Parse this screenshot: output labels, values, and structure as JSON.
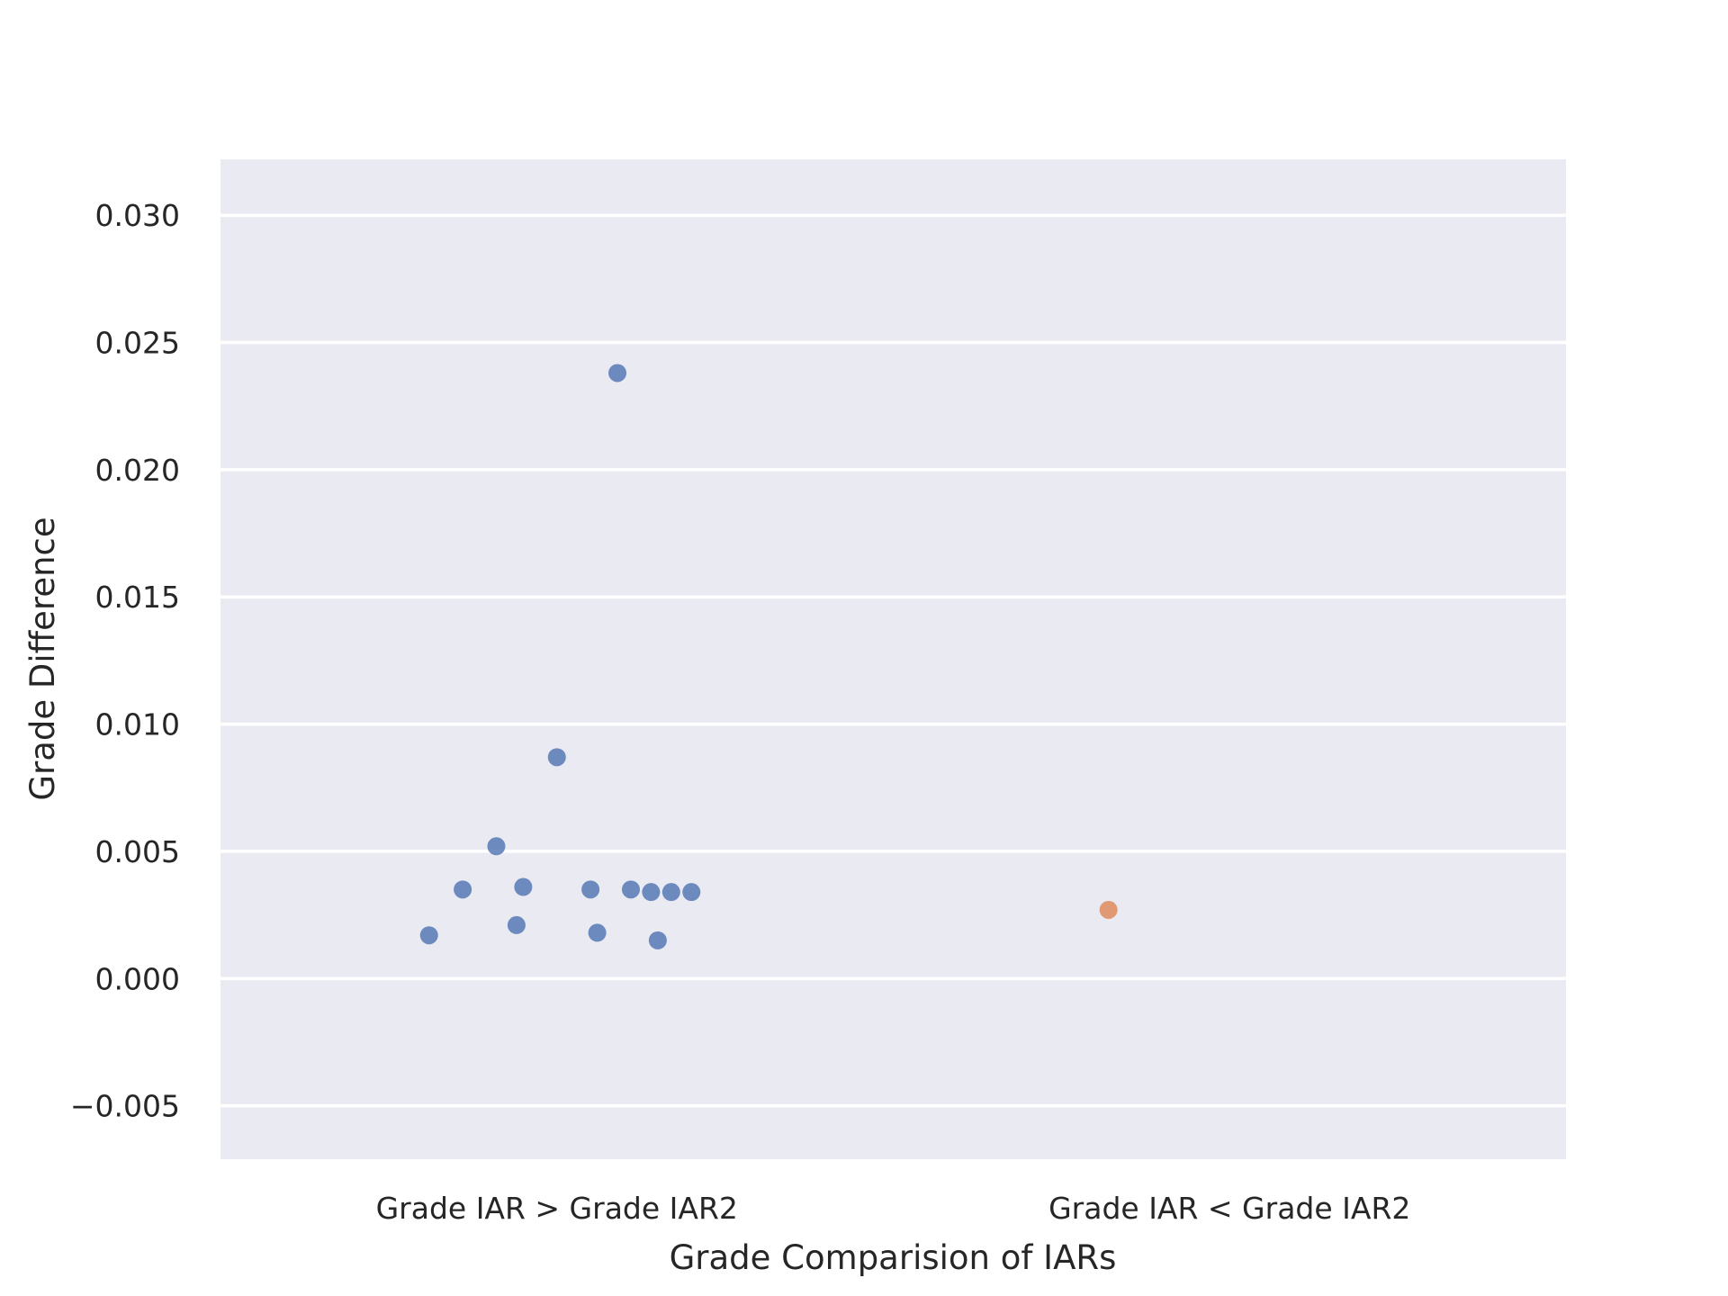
{
  "chart_data": {
    "type": "scatter",
    "title": "",
    "xlabel": "Grade Comparision of IARs",
    "ylabel": "Grade Difference",
    "categories": [
      "Grade IAR > Grade IAR2",
      "Grade IAR < Grade IAR2"
    ],
    "ylim": [
      -0.0071,
      0.0322
    ],
    "yticks": [
      -0.005,
      0.0,
      0.005,
      0.01,
      0.015,
      0.02,
      0.025,
      0.03
    ],
    "ytick_labels": [
      "−0.005",
      "0.000",
      "0.005",
      "0.010",
      "0.015",
      "0.020",
      "0.025",
      "0.030"
    ],
    "grid": true,
    "legend": "none",
    "series": [
      {
        "category": "Grade IAR > Grade IAR2",
        "color": "#4c72b0",
        "values": [
          0.0238,
          0.0087,
          0.0052,
          0.0035,
          0.0036,
          0.0035,
          0.0035,
          0.0034,
          0.0034,
          0.0034,
          0.0017,
          0.0021,
          0.0018,
          0.0015
        ]
      },
      {
        "category": "Grade IAR < Grade IAR2",
        "color": "#dd8452",
        "values": [
          0.0027
        ]
      }
    ],
    "colors": {
      "plot_background": "#eaeaf2",
      "grid": "#ffffff",
      "text": "#262626"
    }
  }
}
